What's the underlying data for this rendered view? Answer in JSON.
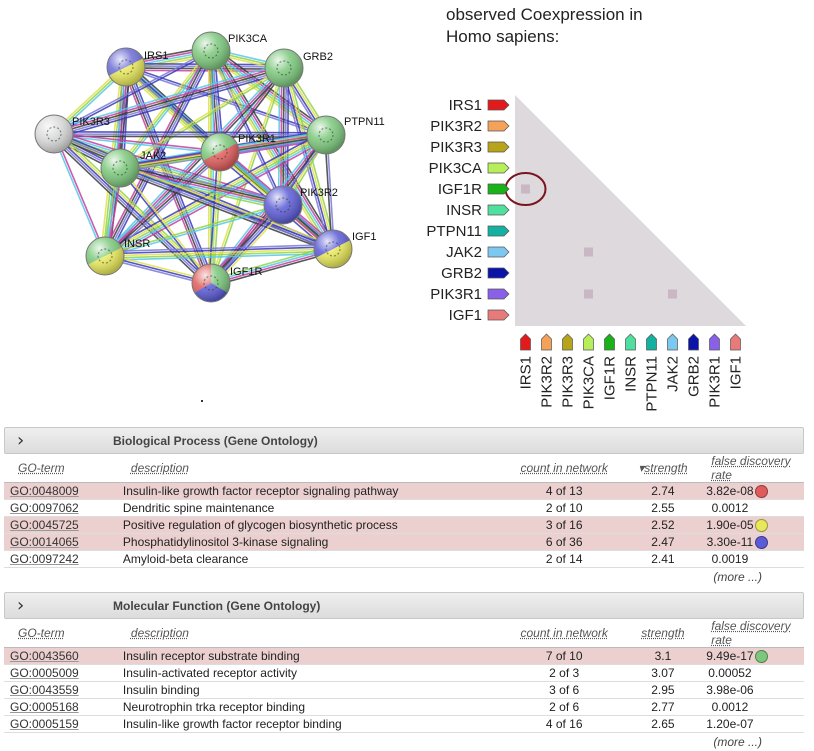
{
  "network": {
    "nodes": [
      {
        "id": "IRS1",
        "colors": [
          "#6d6dd6",
          "#e8e85a"
        ]
      },
      {
        "id": "PIK3CA",
        "colors": [
          "#7cc77c"
        ]
      },
      {
        "id": "GRB2",
        "colors": [
          "#7cc77c"
        ]
      },
      {
        "id": "PIK3R3",
        "colors": [
          "#d9d9d9"
        ]
      },
      {
        "id": "PTPN11",
        "colors": [
          "#7cc77c"
        ]
      },
      {
        "id": "PIK3R1",
        "colors": [
          "#7cc77c",
          "#e05c5c"
        ]
      },
      {
        "id": "JAK2",
        "colors": [
          "#7cc77c"
        ]
      },
      {
        "id": "PIK3R2",
        "colors": [
          "#5b5bd6"
        ]
      },
      {
        "id": "IGF1",
        "colors": [
          "#5b5bd6",
          "#e8e85a"
        ]
      },
      {
        "id": "INSR",
        "colors": [
          "#7cc77c",
          "#e8e85a"
        ]
      },
      {
        "id": "IGF1R",
        "colors": [
          "#7cc77c",
          "#5b5bd6",
          "#e05c5c"
        ]
      }
    ],
    "edge_colors": [
      "#3b3b3b",
      "#c43ea0",
      "#55c8e6",
      "#8fd44a",
      "#e0e04a",
      "#3a3ab8",
      "#7a7ad8"
    ]
  },
  "coexpression": {
    "title_line1": "observed Coexpression in",
    "title_line2": "Homo sapiens:",
    "genes": [
      {
        "name": "IRS1",
        "color": "#e31a1c"
      },
      {
        "name": "PIK3R2",
        "color": "#f4a259"
      },
      {
        "name": "PIK3R3",
        "color": "#b8a41a"
      },
      {
        "name": "PIK3CA",
        "color": "#b7ef5a"
      },
      {
        "name": "IGF1R",
        "color": "#19b219"
      },
      {
        "name": "INSR",
        "color": "#4fe0a0"
      },
      {
        "name": "PTPN11",
        "color": "#14b0a0"
      },
      {
        "name": "JAK2",
        "color": "#7cc8f0"
      },
      {
        "name": "GRB2",
        "color": "#0a14a8"
      },
      {
        "name": "PIK3R1",
        "color": "#8a60e8"
      },
      {
        "name": "IGF1",
        "color": "#e87a7a"
      }
    ],
    "marked_cells": [
      {
        "row": "IGF1R",
        "col": "IRS1"
      },
      {
        "row": "JAK2",
        "col": "PIK3CA"
      },
      {
        "row": "PIK3R1",
        "col": "PIK3CA"
      },
      {
        "row": "PIK3R1",
        "col": "JAK2"
      }
    ],
    "circled_cell": {
      "row": "IGF1R",
      "col": "IRS1"
    }
  },
  "bp": {
    "title": "Biological Process (Gene Ontology)",
    "headers": {
      "term": "GO-term",
      "desc": "description",
      "count": "count in network",
      "strength": "strength",
      "fdr": "false discovery rate"
    },
    "rows": [
      {
        "term": "GO:0048009",
        "desc": "Insulin-like growth factor receptor signaling pathway",
        "count": "4 of 13",
        "strength": "2.74",
        "fdr": "3.82e-08",
        "hl": true,
        "dot": "#e05c5c"
      },
      {
        "term": "GO:0097062",
        "desc": "Dendritic spine maintenance",
        "count": "2 of 10",
        "strength": "2.55",
        "fdr": "0.0012",
        "hl": false,
        "dot": ""
      },
      {
        "term": "GO:0045725",
        "desc": "Positive regulation of glycogen biosynthetic process",
        "count": "3 of 16",
        "strength": "2.52",
        "fdr": "1.90e-05",
        "hl": true,
        "dot": "#e8e85a"
      },
      {
        "term": "GO:0014065",
        "desc": "Phosphatidylinositol 3-kinase signaling",
        "count": "6 of 36",
        "strength": "2.47",
        "fdr": "3.30e-11",
        "hl": true,
        "dot": "#5b5bd6"
      },
      {
        "term": "GO:0097242",
        "desc": "Amyloid-beta clearance",
        "count": "2 of 14",
        "strength": "2.41",
        "fdr": "0.0019",
        "hl": false,
        "dot": ""
      }
    ],
    "more": "(more ...)"
  },
  "mf": {
    "title": "Molecular Function (Gene Ontology)",
    "headers": {
      "term": "GO-term",
      "desc": "description",
      "count": "count in network",
      "strength": "strength",
      "fdr": "false discovery rate"
    },
    "rows": [
      {
        "term": "GO:0043560",
        "desc": "Insulin receptor substrate binding",
        "count": "7 of 10",
        "strength": "3.1",
        "fdr": "9.49e-17",
        "hl": true,
        "dot": "#7cc77c"
      },
      {
        "term": "GO:0005009",
        "desc": "Insulin-activated receptor activity",
        "count": "2 of 3",
        "strength": "3.07",
        "fdr": "0.00052",
        "hl": false,
        "dot": ""
      },
      {
        "term": "GO:0043559",
        "desc": "Insulin binding",
        "count": "3 of 6",
        "strength": "2.95",
        "fdr": "3.98e-06",
        "hl": false,
        "dot": ""
      },
      {
        "term": "GO:0005168",
        "desc": "Neurotrophin trka receptor binding",
        "count": "2 of 6",
        "strength": "2.77",
        "fdr": "0.0012",
        "hl": false,
        "dot": ""
      },
      {
        "term": "GO:0005159",
        "desc": "Insulin-like growth factor receptor binding",
        "count": "4 of 16",
        "strength": "2.65",
        "fdr": "1.20e-07",
        "hl": false,
        "dot": ""
      }
    ],
    "more": "(more ...)"
  }
}
